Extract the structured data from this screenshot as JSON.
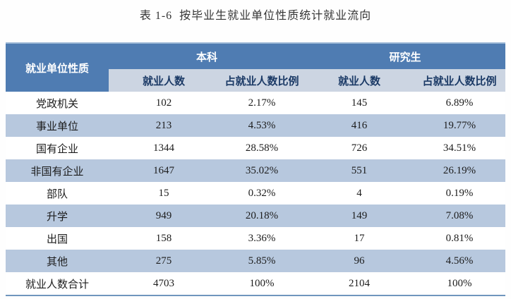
{
  "title": "表 1-6  按毕业生就业单位性质统计就业流向",
  "table": {
    "col1_header": "就业单位性质",
    "group_undergrad": "本科",
    "group_postgrad": "研究生",
    "sub_headers": [
      "就业人数",
      "占就业人数比例",
      "就业人数",
      "占就业人数比例"
    ],
    "rows": [
      [
        "党政机关",
        "102",
        "2.17%",
        "145",
        "6.89%"
      ],
      [
        "事业单位",
        "213",
        "4.53%",
        "416",
        "19.77%"
      ],
      [
        "国有企业",
        "1344",
        "28.58%",
        "726",
        "34.51%"
      ],
      [
        "非国有企业",
        "1647",
        "35.02%",
        "551",
        "26.19%"
      ],
      [
        "部队",
        "15",
        "0.32%",
        "4",
        "0.19%"
      ],
      [
        "升学",
        "949",
        "20.18%",
        "149",
        "7.08%"
      ],
      [
        "出国",
        "158",
        "3.36%",
        "17",
        "0.81%"
      ],
      [
        "其他",
        "275",
        "5.85%",
        "96",
        "4.56%"
      ],
      [
        "就业人数合计",
        "4703",
        "100%",
        "2104",
        "100%"
      ]
    ]
  },
  "colors": {
    "header_background": "#4f7cb2",
    "header_highlight_top": "#9db9d7",
    "subheader_background": "#ccd5e2",
    "subheader_text": "#1b3a66",
    "stripe_background": "#b7c8de",
    "bottom_rule": "#6f96bd",
    "header_text": "#ffffff",
    "body_text": "#1c1c1c"
  }
}
